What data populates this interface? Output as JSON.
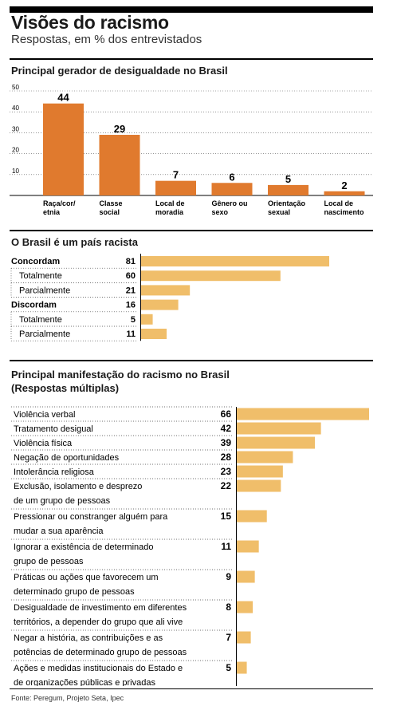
{
  "header": {
    "title": "Visões do racismo",
    "subtitle": "Respostas, em % dos entrevistados"
  },
  "colors": {
    "bar_dark": "#E07A2E",
    "bar_light": "#F0BE6A"
  },
  "footer": {
    "source": "Fonte: Peregum, Projeto Seta, Ipec"
  },
  "chart_data": [
    {
      "type": "bar",
      "title": "Principal gerador de desigualdade no Brasil",
      "categories": [
        "Raça/cor/\netnia",
        "Classe\nsocial",
        "Local de\nmoradia",
        "Gênero ou\nsexo",
        "Orientação\nsexual",
        "Local de\nnascimento"
      ],
      "values": [
        44,
        29,
        7,
        6,
        5,
        2
      ],
      "yticks": [
        10,
        20,
        30,
        40,
        50
      ],
      "ylim": [
        0,
        50
      ],
      "grid": true
    },
    {
      "type": "bar",
      "orientation": "horizontal",
      "title": "O Brasil é um país racista",
      "categories": [
        "Concordam",
        "Totalmente",
        "Parcialmente",
        "Discordam",
        "Totalmente",
        "Parcialmente"
      ],
      "values": [
        81,
        60,
        21,
        16,
        5,
        11
      ],
      "subitem": [
        false,
        true,
        true,
        false,
        true,
        true
      ]
    },
    {
      "type": "bar",
      "orientation": "horizontal",
      "title": "Principal manifestação do racismo no Brasil\n(Respostas múltiplas)",
      "categories": [
        "Violência verbal",
        "Tratamento desigual",
        "Violência física",
        "Negação de oportunidades",
        "Intolerância religiosa",
        "Exclusão, isolamento e desprezo\nde um grupo de pessoas",
        "Pressionar ou constranger alguém para\nmudar a sua aparência",
        "Ignorar a existência de determinado\ngrupo de pessoas",
        "Práticas ou ações que favorecem um\ndeterminado grupo de pessoas",
        "Desigualdade de investimento em diferentes\nterritórios, a depender do grupo que ali vive",
        "Negar a história, as contribuições e as\npotências de determinado grupo de pessoas",
        "Ações e medidas institucionais do Estado e\nde organizações públicas e privadas"
      ],
      "values": [
        66,
        42,
        39,
        28,
        23,
        22,
        15,
        11,
        9,
        8,
        7,
        5
      ]
    }
  ]
}
